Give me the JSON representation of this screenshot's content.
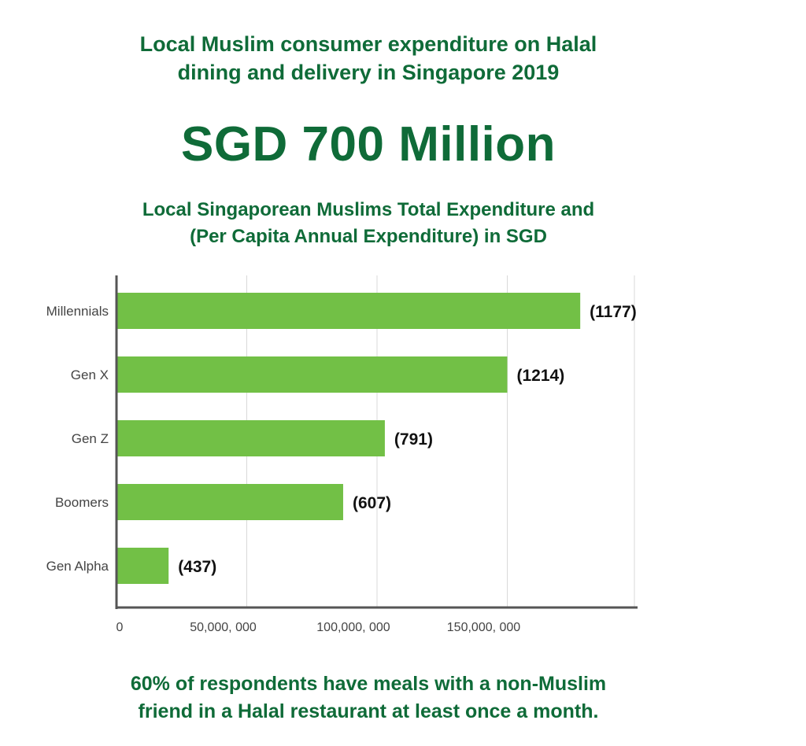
{
  "header": {
    "title_lines": [
      "Local Muslim consumer expenditure on Halal",
      "dining and delivery in Singapore 2019"
    ],
    "headline": "SGD 700 Million"
  },
  "chart_data": {
    "type": "bar",
    "orientation": "horizontal",
    "title_lines": [
      "Local Singaporean Muslims Total Expenditure and",
      "(Per Capita Annual Expenditure) in SGD"
    ],
    "categories": [
      "Millennials",
      "Gen X",
      "Gen Z",
      "Boomers",
      "Gen Alpha"
    ],
    "values": [
      178000000,
      150000000,
      103000000,
      87000000,
      20000000
    ],
    "data_labels": [
      "(1177)",
      "(1214)",
      "(791)",
      "(607)",
      "(437)"
    ],
    "x_ticks": [
      {
        "value": 0,
        "label": "0"
      },
      {
        "value": 50000000,
        "label": "50,000, 000"
      },
      {
        "value": 100000000,
        "label": "100,000, 000"
      },
      {
        "value": 150000000,
        "label": "150,000, 000"
      }
    ],
    "xlim": [
      0,
      200000000
    ],
    "grid": true,
    "legend": "none",
    "colors": {
      "bar": "#72c046",
      "text_green": "#0f6b38",
      "axis": "#555555",
      "grid": "#d9d9d9"
    }
  },
  "footer": {
    "note_lines": [
      "60% of respondents have meals with a non-Muslim",
      "friend in a Halal restaurant at least once a month."
    ]
  }
}
